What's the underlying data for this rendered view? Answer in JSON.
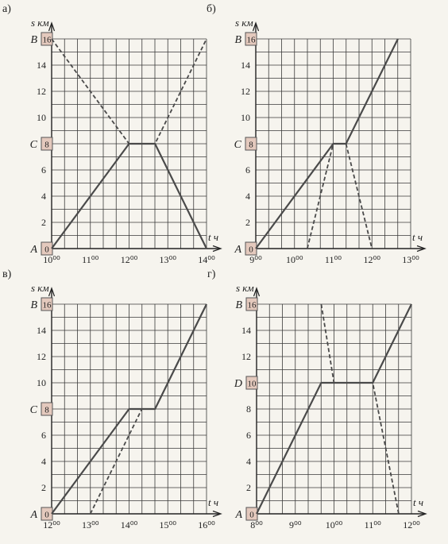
{
  "colors": {
    "paper": "#f6f4ee",
    "grid": "#3a3a3a",
    "line": "#4a4a4a",
    "box_fill": "#e4c9bd",
    "box_stroke": "#555555"
  },
  "chart_data": [
    {
      "type": "line",
      "panel_label": "а)",
      "ylabel": "s км",
      "xlabel": "t ч",
      "x_ticks": [
        "10⁰⁰",
        "11⁰⁰",
        "12⁰⁰",
        "13⁰⁰",
        "14⁰⁰"
      ],
      "y_ticks": [
        "2",
        "4",
        "6",
        "10",
        "12",
        "14"
      ],
      "xlim": [
        10,
        14
      ],
      "ylim": [
        0,
        16
      ],
      "grid": true,
      "points_labels": [
        {
          "letter": "B",
          "value": "16"
        },
        {
          "letter": "C",
          "value": "8"
        },
        {
          "letter": "A",
          "value": "0"
        }
      ],
      "series": [
        {
          "style": "solid",
          "points": [
            [
              10,
              0
            ],
            [
              12,
              8
            ],
            [
              12.67,
              8
            ],
            [
              14,
              0
            ]
          ]
        },
        {
          "style": "dashed",
          "points": [
            [
              10,
              16
            ],
            [
              12,
              8
            ],
            [
              12.67,
              8
            ],
            [
              14,
              16
            ]
          ]
        }
      ]
    },
    {
      "type": "line",
      "panel_label": "б)",
      "ylabel": "s км",
      "xlabel": "t ч",
      "x_ticks": [
        "9⁰⁰",
        "10⁰⁰",
        "11⁰⁰",
        "12⁰⁰",
        "13⁰⁰"
      ],
      "y_ticks": [
        "2",
        "4",
        "6",
        "10",
        "12",
        "14"
      ],
      "xlim": [
        9,
        13
      ],
      "ylim": [
        0,
        16
      ],
      "grid": true,
      "points_labels": [
        {
          "letter": "B",
          "value": "16"
        },
        {
          "letter": "C",
          "value": "8"
        },
        {
          "letter": "A",
          "value": "0"
        }
      ],
      "series": [
        {
          "style": "solid",
          "points": [
            [
              9,
              0
            ],
            [
              11,
              8
            ],
            [
              11.33,
              8
            ],
            [
              12.67,
              16
            ]
          ]
        },
        {
          "style": "dashed",
          "points": [
            [
              10.33,
              0
            ],
            [
              11,
              8
            ],
            [
              11.33,
              8
            ],
            [
              12,
              0
            ]
          ]
        }
      ]
    },
    {
      "type": "line",
      "panel_label": "в)",
      "ylabel": "s км",
      "xlabel": "t ч",
      "x_ticks": [
        "12⁰⁰",
        "13⁰⁰",
        "14⁰⁰",
        "15⁰⁰",
        "16⁰⁰"
      ],
      "y_ticks": [
        "2",
        "4",
        "6",
        "10",
        "12",
        "14"
      ],
      "xlim": [
        12,
        16
      ],
      "ylim": [
        0,
        16
      ],
      "grid": true,
      "points_labels": [
        {
          "letter": "B",
          "value": "16"
        },
        {
          "letter": "C",
          "value": "8"
        },
        {
          "letter": "A",
          "value": "0"
        }
      ],
      "series": [
        {
          "style": "solid",
          "points": [
            [
              12,
              0
            ],
            [
              14,
              8
            ],
            [
              14.67,
              8
            ],
            [
              16,
              16
            ]
          ]
        },
        {
          "style": "dashed",
          "points": [
            [
              13,
              0
            ],
            [
              14.33,
              8
            ],
            [
              14.67,
              8
            ],
            [
              16,
              16
            ]
          ]
        }
      ]
    },
    {
      "type": "line",
      "panel_label": "г)",
      "ylabel": "s км",
      "xlabel": "t ч",
      "x_ticks": [
        "8⁰⁰",
        "9⁰⁰",
        "10⁰⁰",
        "11⁰⁰",
        "12⁰⁰"
      ],
      "y_ticks": [
        "2",
        "4",
        "6",
        "8",
        "12",
        "14"
      ],
      "xlim": [
        8,
        12
      ],
      "ylim": [
        0,
        16
      ],
      "grid": true,
      "points_labels": [
        {
          "letter": "B",
          "value": "16"
        },
        {
          "letter": "D",
          "value": "10"
        },
        {
          "letter": "A",
          "value": "0"
        }
      ],
      "series": [
        {
          "style": "solid",
          "points": [
            [
              8,
              0
            ],
            [
              9.67,
              10
            ],
            [
              11,
              10
            ],
            [
              12,
              16
            ]
          ]
        },
        {
          "style": "dashed",
          "points": [
            [
              9.67,
              16
            ],
            [
              10,
              10
            ],
            [
              11,
              10
            ],
            [
              11.67,
              0
            ]
          ]
        }
      ]
    }
  ]
}
